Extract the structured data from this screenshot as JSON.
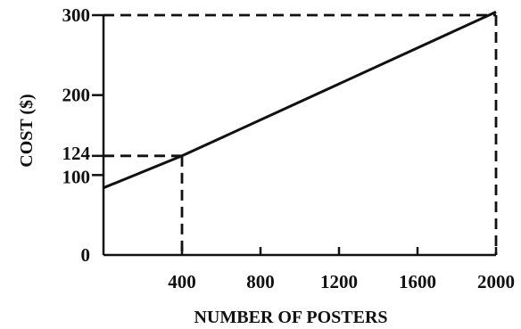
{
  "chart_data": {
    "type": "line",
    "xlabel": "NUMBER OF POSTERS",
    "ylabel": "COST ($)",
    "xlim": [
      0,
      2000
    ],
    "ylim": [
      0,
      300
    ],
    "x_ticks": [
      400,
      800,
      1200,
      1600,
      2000
    ],
    "y_ticks": [
      0,
      100,
      124,
      200,
      300
    ],
    "grid": false,
    "series": [
      {
        "x": [
          0,
          400,
          2000
        ],
        "y": [
          84,
          124,
          304
        ]
      }
    ],
    "guides": [
      {
        "x": 400,
        "y": 124,
        "style": "dashed"
      },
      {
        "x": 2000,
        "y": 300,
        "style": "dashed"
      }
    ]
  }
}
